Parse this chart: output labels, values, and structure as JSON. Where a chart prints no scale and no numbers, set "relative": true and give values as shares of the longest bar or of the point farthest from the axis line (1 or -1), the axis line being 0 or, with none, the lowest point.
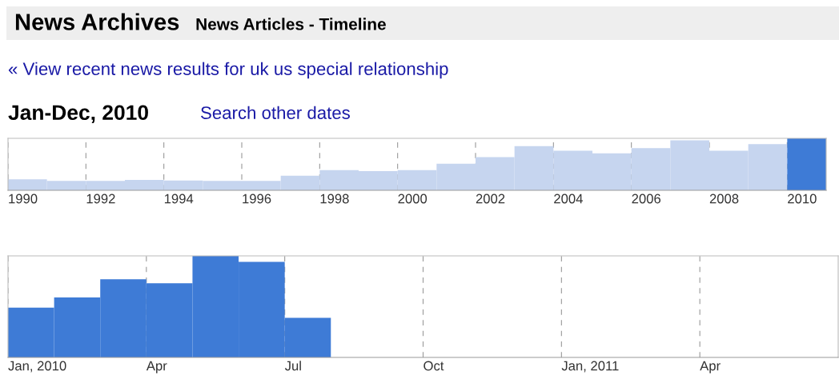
{
  "chart_data": [
    {
      "type": "bar",
      "title": "News Archives",
      "subtitle": "News Articles - Timeline",
      "annotations": [
        "« View recent news results for uk us special relationship",
        "Jan-Dec, 2010",
        "Search other dates"
      ],
      "relative": true,
      "grid": "x",
      "categories": [
        "1990",
        null,
        "1992",
        null,
        "1994",
        null,
        "1996",
        null,
        "1998",
        null,
        "2000",
        null,
        "2002",
        null,
        "2004",
        null,
        "2006",
        null,
        "2008",
        null,
        "2010"
      ],
      "values": [
        0.21,
        0.18,
        0.18,
        0.2,
        0.19,
        0.18,
        0.18,
        0.28,
        0.39,
        0.37,
        0.39,
        0.51,
        0.64,
        0.85,
        0.76,
        0.71,
        0.81,
        0.96,
        0.76,
        0.89,
        1.0
      ],
      "colors": [
        "#c6d5ef",
        "#c6d5ef",
        "#c6d5ef",
        "#c6d5ef",
        "#c6d5ef",
        "#c6d5ef",
        "#c6d5ef",
        "#c6d5ef",
        "#c6d5ef",
        "#c6d5ef",
        "#c6d5ef",
        "#c6d5ef",
        "#c6d5ef",
        "#c6d5ef",
        "#c6d5ef",
        "#c6d5ef",
        "#c6d5ef",
        "#c6d5ef",
        "#c6d5ef",
        "#c6d5ef",
        "#3e7bd6"
      ]
    },
    {
      "type": "bar",
      "relative": true,
      "grid": "x",
      "categories": [
        "Jan, 2010",
        null,
        null,
        "Apr",
        null,
        null,
        "Jul",
        null,
        null,
        "Oct",
        null,
        null,
        "Jan, 2011",
        null,
        null,
        "Apr",
        null,
        null
      ],
      "values": [
        0.49,
        0.59,
        0.77,
        0.73,
        1.0,
        0.94,
        0.39,
        null,
        null,
        null,
        null,
        null,
        null,
        null,
        null,
        null,
        null,
        null
      ],
      "color": "#3e7bd6"
    }
  ]
}
